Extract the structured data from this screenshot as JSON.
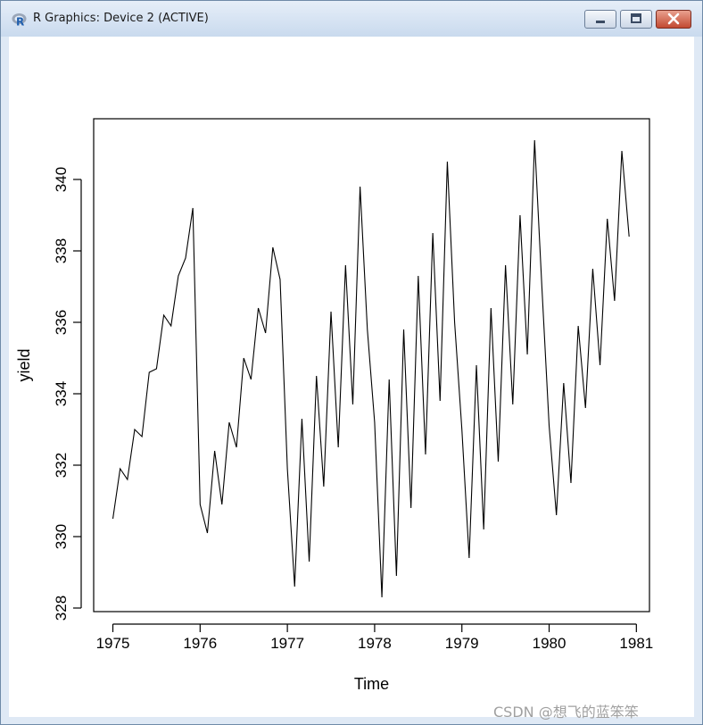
{
  "window": {
    "title": "R Graphics: Device 2 (ACTIVE)",
    "app_icon": "r-logo-icon",
    "controls": [
      "minimize-icon",
      "maximize-icon",
      "close-icon"
    ]
  },
  "chart_data": {
    "type": "line",
    "title": "",
    "xlabel": "Time",
    "ylabel": "yield",
    "xlim": [
      1974.78,
      1981.15
    ],
    "ylim": [
      327.9,
      341.7
    ],
    "xticks": [
      1975,
      1976,
      1977,
      1978,
      1979,
      1980,
      1981
    ],
    "yticks": [
      328,
      330,
      332,
      334,
      336,
      338,
      340
    ],
    "grid": false,
    "start": 1975,
    "frequency": 12,
    "series": [
      {
        "values": [
          330.5,
          331.9,
          331.6,
          333.0,
          332.8,
          334.6,
          334.7,
          336.2,
          335.9,
          337.3,
          337.8,
          339.2,
          330.9,
          330.1,
          332.4,
          330.9,
          333.2,
          332.5,
          335.0,
          334.4,
          336.4,
          335.7,
          338.1,
          337.2,
          331.9,
          328.6,
          333.3,
          329.3,
          334.5,
          331.4,
          336.3,
          332.5,
          337.6,
          333.7,
          339.8,
          335.8,
          333.2,
          328.3,
          334.4,
          328.9,
          335.8,
          330.8,
          337.3,
          332.3,
          338.5,
          333.8,
          340.5,
          336.0,
          333.0,
          329.4,
          334.8,
          330.2,
          336.4,
          332.1,
          337.6,
          333.7,
          339.0,
          335.1,
          341.1,
          337.0,
          333.1,
          330.6,
          334.3,
          331.5,
          335.9,
          333.6,
          337.5,
          334.8,
          338.9,
          336.6,
          340.8,
          338.4
        ]
      }
    ]
  },
  "watermark": "CSDN @想飞的蓝笨笨"
}
